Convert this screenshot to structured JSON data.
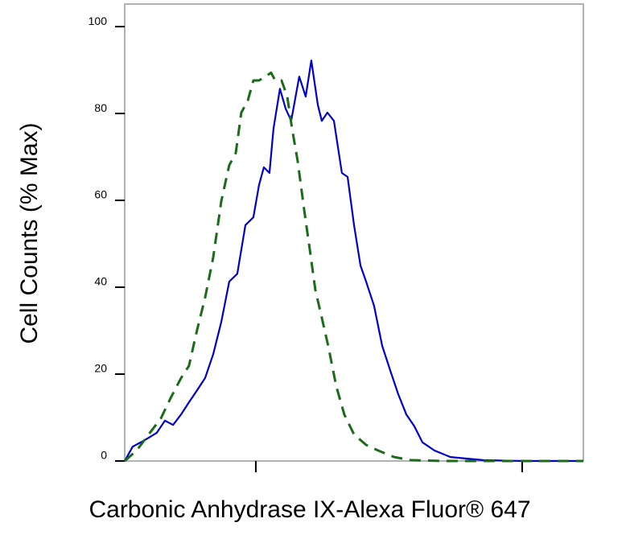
{
  "chart_data": {
    "type": "line",
    "ylabel": "Cell Counts (% Max)",
    "xlabel": "Carbonic Anhydrase IX-Alexa Fluor® 647",
    "xscale": "log",
    "xlim": [
      3.22,
      169.7
    ],
    "xticks": [
      10,
      100
    ],
    "ylim": [
      0,
      105.2
    ],
    "yticks": [
      0,
      20,
      40,
      60,
      80,
      100
    ],
    "series": [
      {
        "color": "#0000cc",
        "dashed": false,
        "x": [
          3.22,
          3.45,
          3.83,
          4.25,
          4.56,
          4.89,
          5.24,
          5.61,
          6.02,
          6.45,
          6.92,
          7.42,
          7.95,
          8.52,
          9.14,
          9.79,
          10.28,
          10.72,
          11.25,
          11.65,
          12.32,
          12.94,
          13.58,
          14.56,
          15.39,
          16.16,
          17.09,
          17.69,
          18.57,
          19.64,
          21.05,
          22.11,
          23.37,
          24.71,
          25.94,
          27.8,
          29.81,
          31.95,
          34.25,
          36.73,
          39.37,
          42.21,
          46.86,
          53.84,
          71.12,
          100.7,
          169.7
        ],
        "values": [
          0,
          3.3,
          4.8,
          6.5,
          9.3,
          8.3,
          10.7,
          13.5,
          16.3,
          19.1,
          24.6,
          32.0,
          41.3,
          43.1,
          54.3,
          56.1,
          63.5,
          67.6,
          66.3,
          76.5,
          85.7,
          81.1,
          78.3,
          88.5,
          83.9,
          92.2,
          82.0,
          78.3,
          80.2,
          78.3,
          66.3,
          65.4,
          54.3,
          45.0,
          41.3,
          35.7,
          26.5,
          20.9,
          15.4,
          10.7,
          8.0,
          4.3,
          2.4,
          0.9,
          0.2,
          0,
          0
        ]
      },
      {
        "color": "#1a6b1a",
        "dashed": true,
        "x": [
          3.22,
          3.57,
          3.96,
          4.4,
          4.78,
          5.24,
          5.61,
          6.02,
          6.45,
          6.92,
          7.42,
          7.95,
          8.41,
          8.82,
          9.33,
          9.79,
          10.28,
          10.87,
          11.41,
          11.82,
          12.49,
          13.12,
          13.68,
          14.36,
          15.18,
          15.94,
          16.73,
          17.69,
          18.7,
          20.05,
          21.49,
          23.37,
          25.94,
          28.79,
          33.08,
          38.03,
          50.21,
          169.7
        ],
        "values": [
          0,
          2.4,
          6.1,
          9.8,
          14.4,
          19.1,
          21.9,
          30.2,
          37.6,
          46.9,
          59.8,
          68.1,
          70.9,
          80.2,
          83.0,
          87.6,
          87.6,
          88.5,
          89.4,
          87.6,
          87.6,
          83.9,
          76.5,
          69.1,
          58.0,
          48.7,
          39.4,
          33.0,
          26.5,
          17.2,
          10.7,
          6.1,
          3.7,
          2.4,
          0.9,
          0.2,
          0,
          0
        ]
      }
    ]
  }
}
